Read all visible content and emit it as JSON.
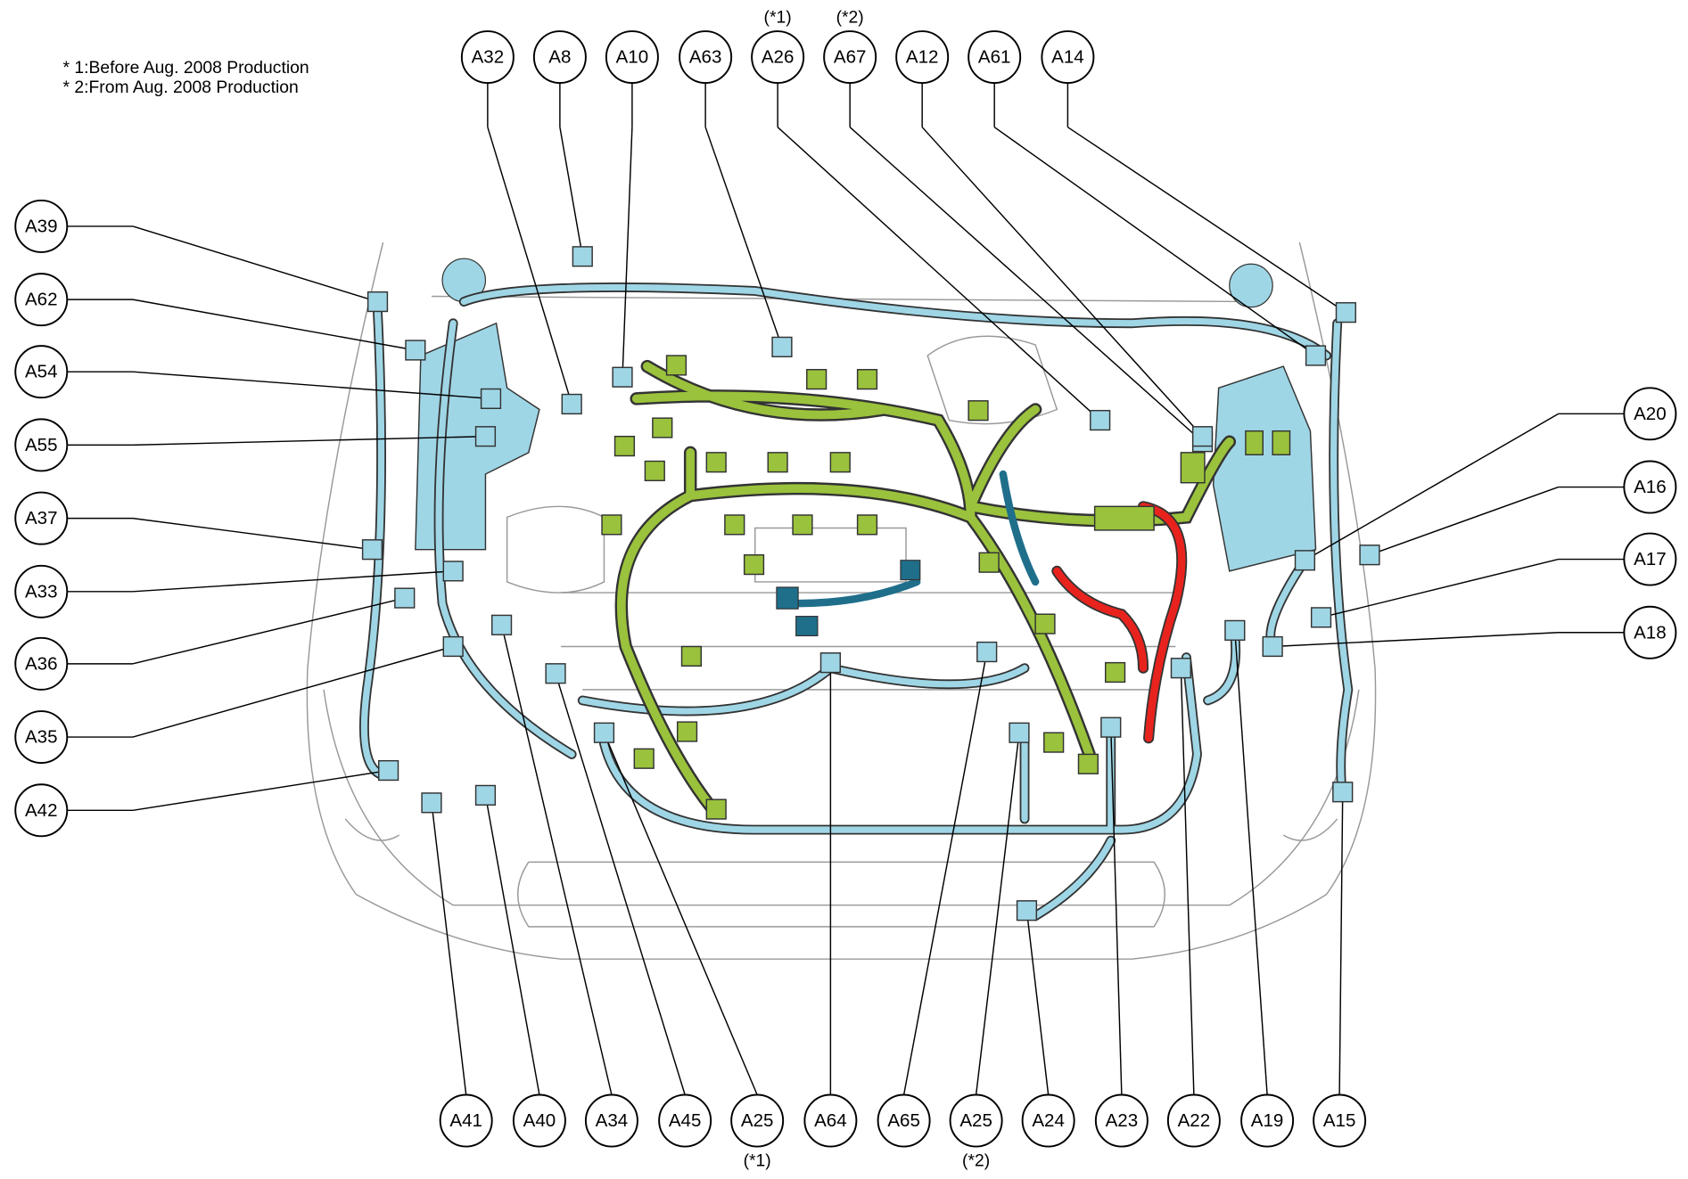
{
  "notes": [
    "* 1:Before Aug. 2008 Production",
    "* 2:From Aug. 2008 Production"
  ],
  "top": [
    {
      "label": "A32"
    },
    {
      "label": "A8"
    },
    {
      "label": "A10"
    },
    {
      "label": "A63"
    },
    {
      "label": "A26",
      "note": "(*1)"
    },
    {
      "label": "A67",
      "note": "(*2)"
    },
    {
      "label": "A12"
    },
    {
      "label": "A61"
    },
    {
      "label": "A14"
    }
  ],
  "left": [
    {
      "label": "A39"
    },
    {
      "label": "A62"
    },
    {
      "label": "A54"
    },
    {
      "label": "A55"
    },
    {
      "label": "A37"
    },
    {
      "label": "A33"
    },
    {
      "label": "A36"
    },
    {
      "label": "A35"
    },
    {
      "label": "A42"
    }
  ],
  "right": [
    {
      "label": "A20"
    },
    {
      "label": "A16"
    },
    {
      "label": "A17"
    },
    {
      "label": "A18"
    }
  ],
  "bottom": [
    {
      "label": "A41"
    },
    {
      "label": "A40"
    },
    {
      "label": "A34"
    },
    {
      "label": "A45"
    },
    {
      "label": "A25",
      "note": "(*1)"
    },
    {
      "label": "A64"
    },
    {
      "label": "A65"
    },
    {
      "label": "A25",
      "note": "(*2)"
    },
    {
      "label": "A24"
    },
    {
      "label": "A23"
    },
    {
      "label": "A22"
    },
    {
      "label": "A19"
    },
    {
      "label": "A15"
    }
  ]
}
